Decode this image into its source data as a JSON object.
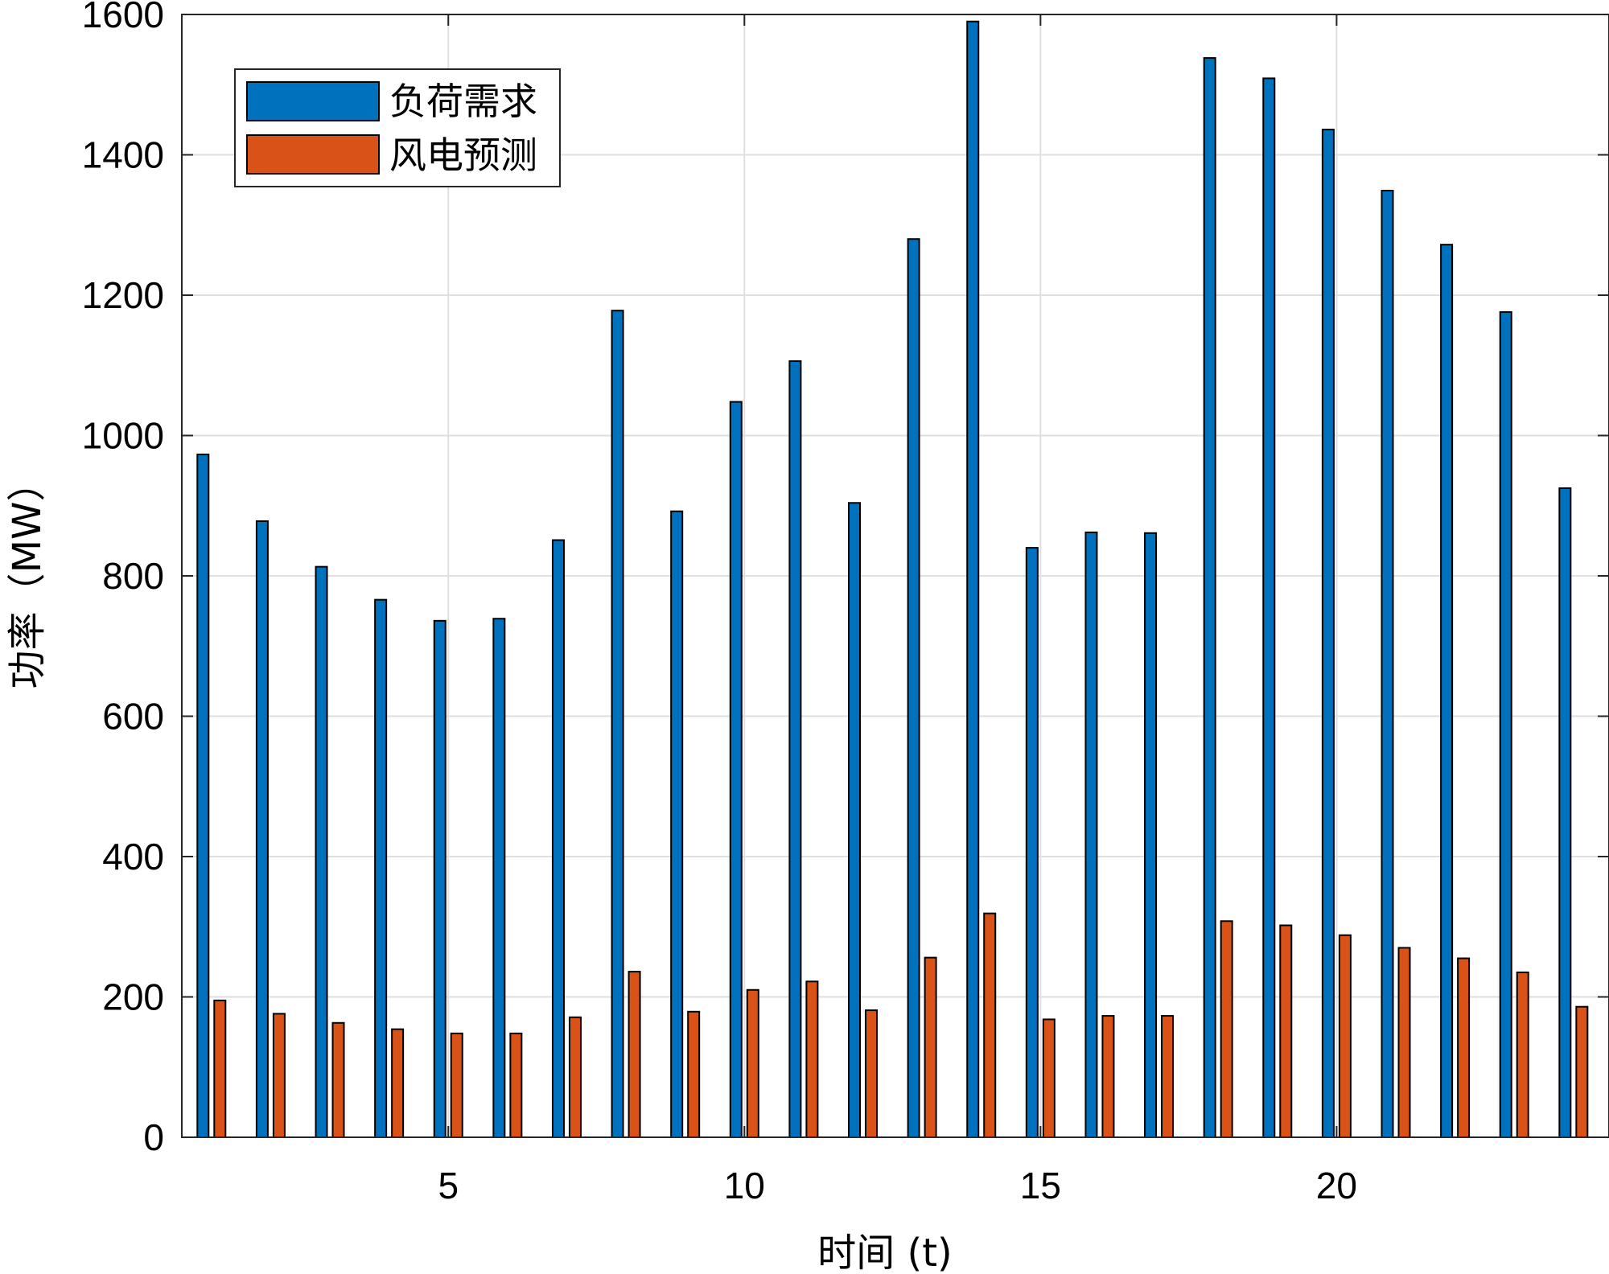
{
  "chart_data": {
    "type": "bar",
    "xlabel": "时间 (t)",
    "ylabel": "功率（MW）",
    "x": [
      1,
      2,
      3,
      4,
      5,
      6,
      7,
      8,
      9,
      10,
      11,
      12,
      13,
      14,
      15,
      16,
      17,
      18,
      19,
      20,
      21,
      22,
      23,
      24
    ],
    "xticks": [
      5,
      10,
      15,
      20
    ],
    "yticks": [
      0,
      200,
      400,
      600,
      800,
      1000,
      1200,
      1400,
      1600
    ],
    "xlim": [
      0.5,
      24.6
    ],
    "ylim": [
      0,
      1600
    ],
    "grid": true,
    "legend_position": "top-left",
    "series": [
      {
        "name": "负荷需求",
        "color": "#0072BD",
        "values": [
          973,
          878,
          813,
          766,
          736,
          739,
          851,
          1178,
          892,
          1048,
          1106,
          904,
          1280,
          1590,
          840,
          862,
          861,
          1538,
          1509,
          1436,
          1349,
          1272,
          1176,
          925
        ]
      },
      {
        "name": "风电预测",
        "color": "#D95319",
        "values": [
          195,
          176,
          163,
          154,
          148,
          148,
          171,
          236,
          179,
          210,
          222,
          181,
          256,
          319,
          168,
          173,
          173,
          308,
          302,
          288,
          270,
          255,
          235,
          186
        ]
      }
    ]
  }
}
